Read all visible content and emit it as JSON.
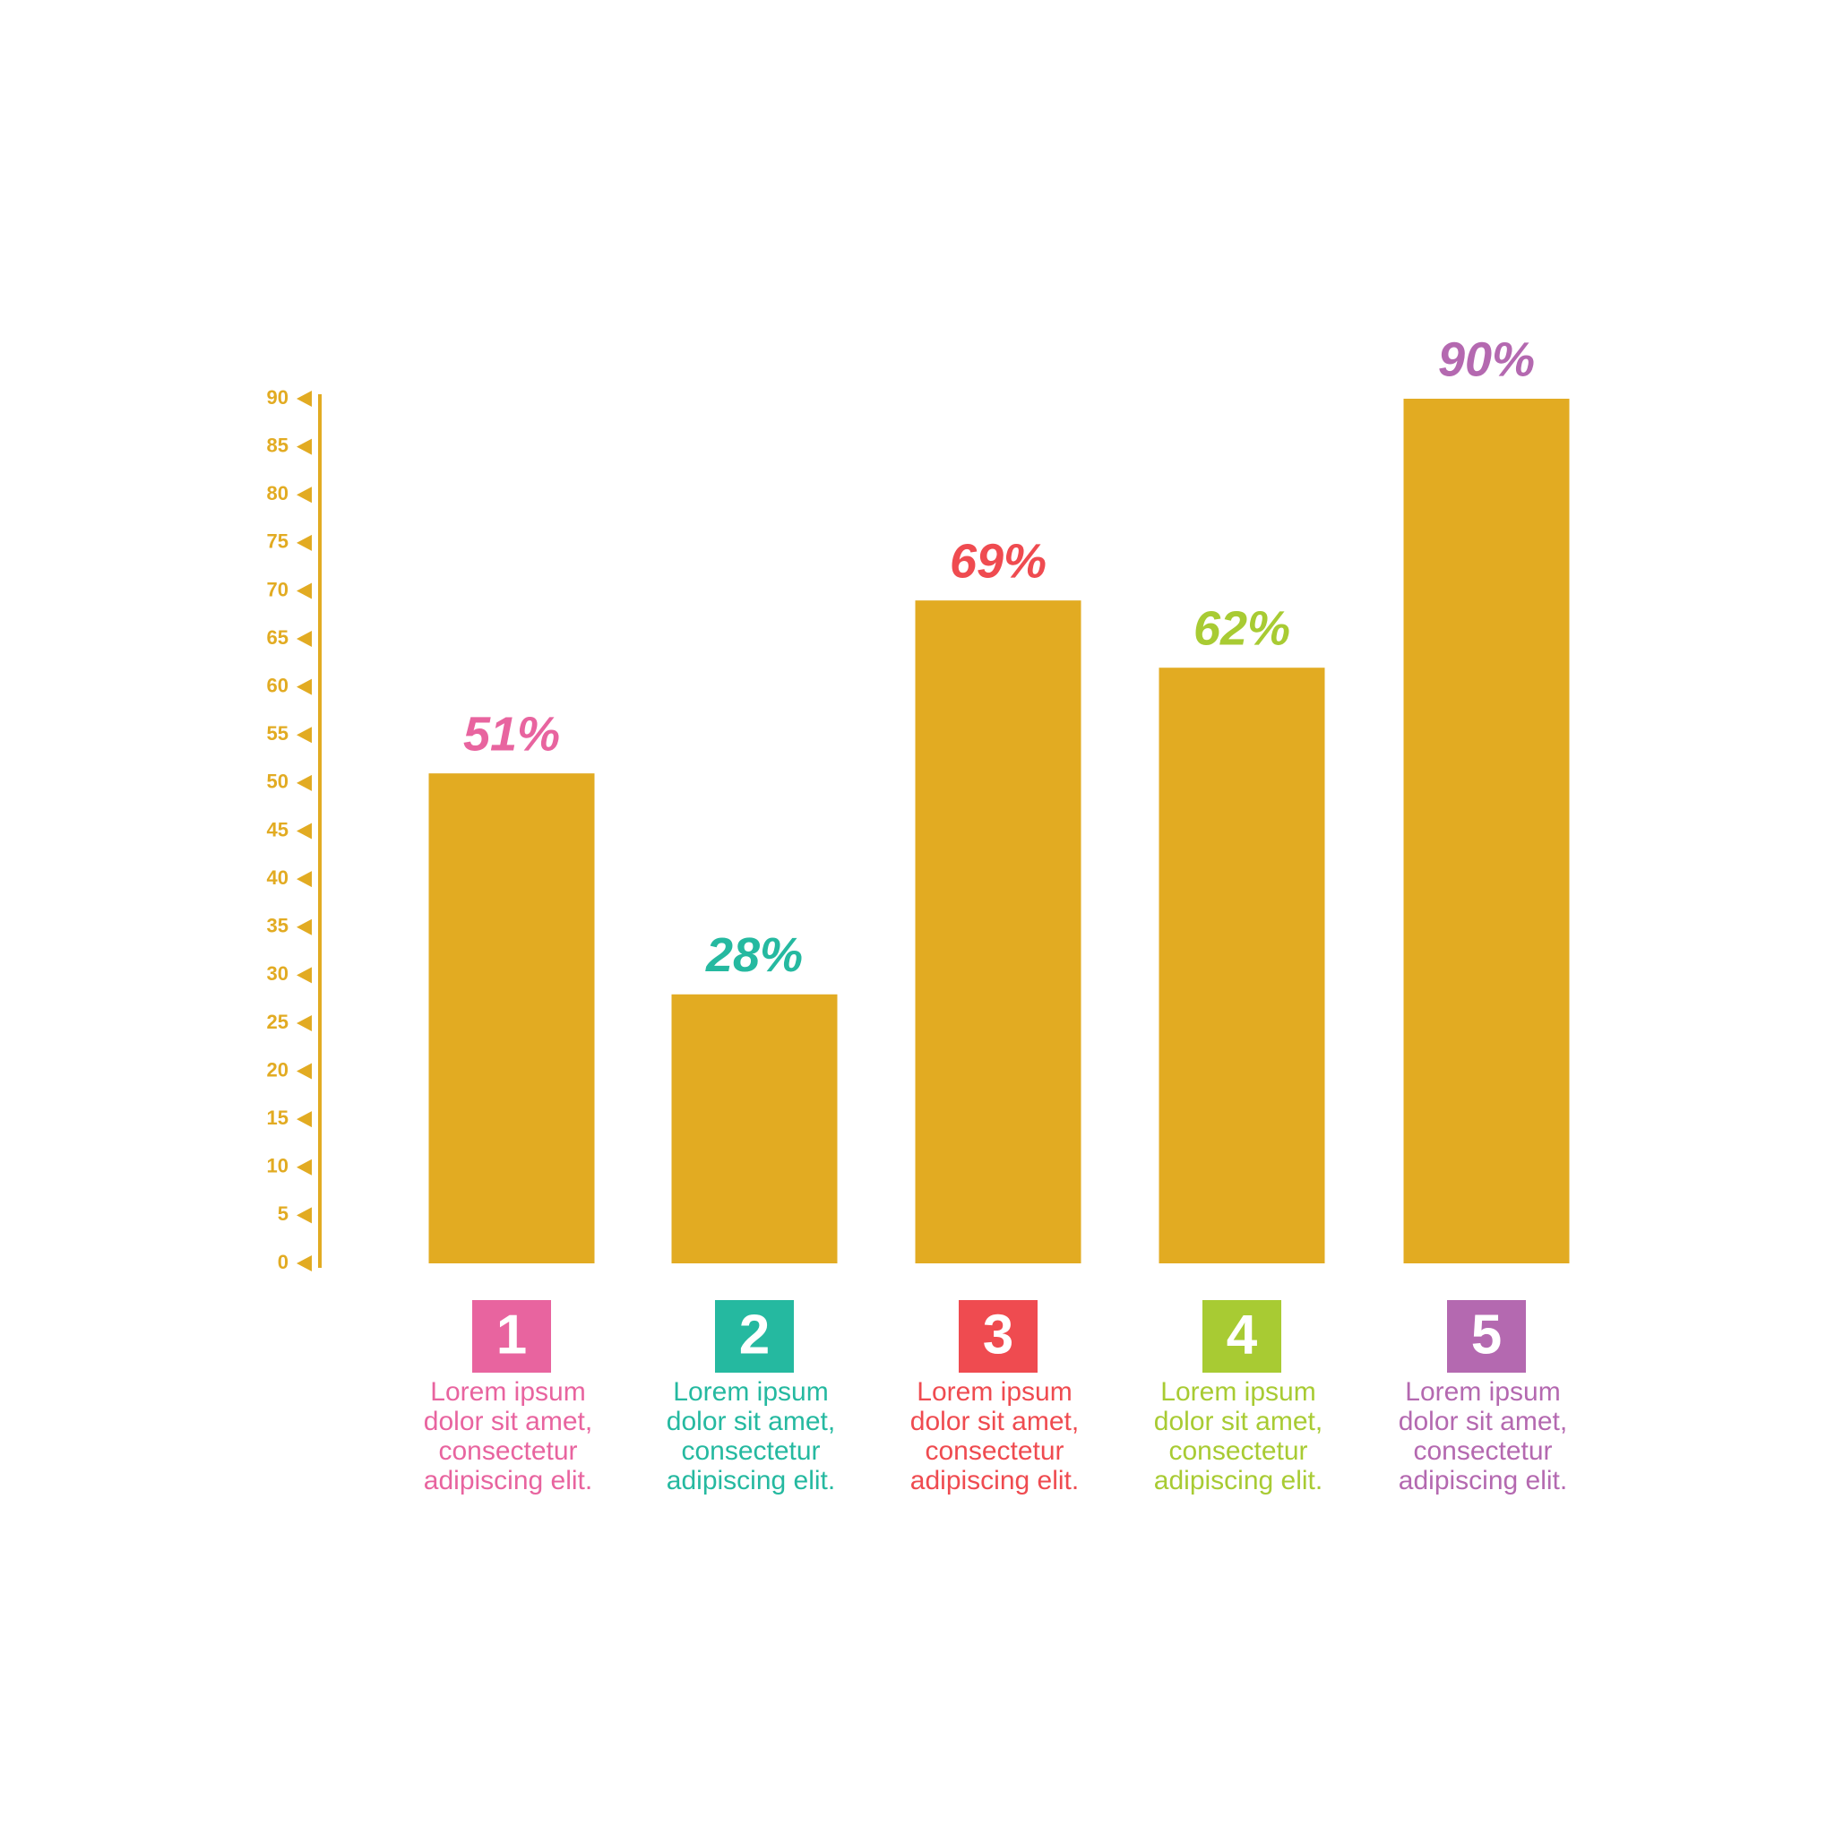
{
  "chart_data": {
    "type": "bar",
    "categories": [
      "1",
      "2",
      "3",
      "4",
      "5"
    ],
    "values": [
      51,
      28,
      69,
      62,
      90
    ],
    "value_labels": [
      "51%",
      "28%",
      "69%",
      "62%",
      "90%"
    ],
    "color": "#e2ab22",
    "category_colors": [
      "#e8649f",
      "#25b9a0",
      "#ef4b50",
      "#a8cb33",
      "#b469b0"
    ],
    "descriptions": [
      [
        "Lorem ipsum",
        "dolor sit amet,",
        "consectetur",
        "adipiscing elit."
      ],
      [
        "Lorem ipsum",
        "dolor sit amet,",
        "consectetur",
        "adipiscing elit."
      ],
      [
        "Lorem ipsum",
        "dolor sit amet,",
        "consectetur",
        "adipiscing elit."
      ],
      [
        "Lorem ipsum",
        "dolor sit amet,",
        "consectetur",
        "adipiscing elit."
      ],
      [
        "Lorem ipsum",
        "dolor sit amet,",
        "consectetur",
        "adipiscing elit."
      ]
    ],
    "ylim": [
      0,
      90
    ],
    "yticks": [
      0,
      5,
      10,
      15,
      20,
      25,
      30,
      35,
      40,
      45,
      50,
      55,
      60,
      65,
      70,
      75,
      80,
      85,
      90
    ]
  }
}
